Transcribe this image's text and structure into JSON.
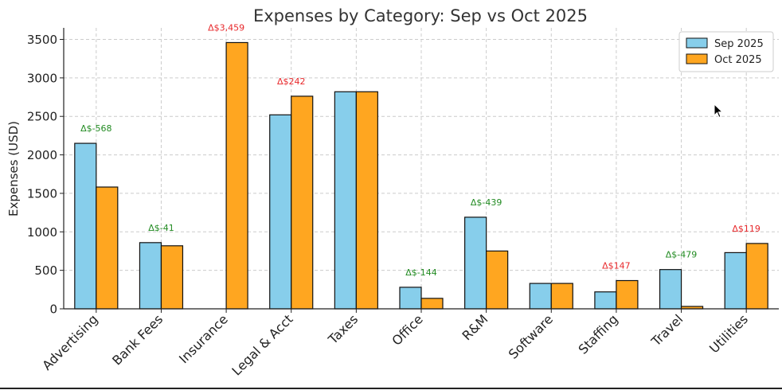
{
  "chart_data": {
    "type": "bar",
    "title": "Expenses by Category: Sep vs Oct 2025",
    "xlabel": "",
    "ylabel": "Expenses (USD)",
    "ylim": [
      0,
      3650
    ],
    "yticks": [
      0,
      500,
      1000,
      1500,
      2000,
      2500,
      3000,
      3500
    ],
    "grid": true,
    "legend_position": "top-right",
    "categories": [
      "Advertising",
      "Bank Fees",
      "Insurance",
      "Legal & Acct",
      "Taxes",
      "Office",
      "R&M",
      "Software",
      "Staffing",
      "Travel",
      "Utilities"
    ],
    "series": [
      {
        "name": "Sep 2025",
        "color": "#87ceeb",
        "values": [
          2150,
          860,
          0,
          2520,
          2820,
          280,
          1190,
          330,
          220,
          510,
          730
        ]
      },
      {
        "name": "Oct 2025",
        "color": "#ffa620",
        "values": [
          1582,
          819,
          3459,
          2762,
          2820,
          136,
          751,
          330,
          367,
          31,
          849
        ]
      }
    ],
    "annotations": [
      {
        "category": "Advertising",
        "text": "Δ$-568",
        "color": "#228b22"
      },
      {
        "category": "Bank Fees",
        "text": "Δ$-41",
        "color": "#228b22"
      },
      {
        "category": "Insurance",
        "text": "Δ$3,459",
        "color": "#e8282b"
      },
      {
        "category": "Legal & Acct",
        "text": "Δ$242",
        "color": "#e8282b"
      },
      {
        "category": "Office",
        "text": "Δ$-144",
        "color": "#228b22"
      },
      {
        "category": "R&M",
        "text": "Δ$-439",
        "color": "#228b22"
      },
      {
        "category": "Staffing",
        "text": "Δ$147",
        "color": "#e8282b"
      },
      {
        "category": "Travel",
        "text": "Δ$-479",
        "color": "#228b22"
      },
      {
        "category": "Utilities",
        "text": "Δ$119",
        "color": "#e8282b"
      }
    ]
  }
}
